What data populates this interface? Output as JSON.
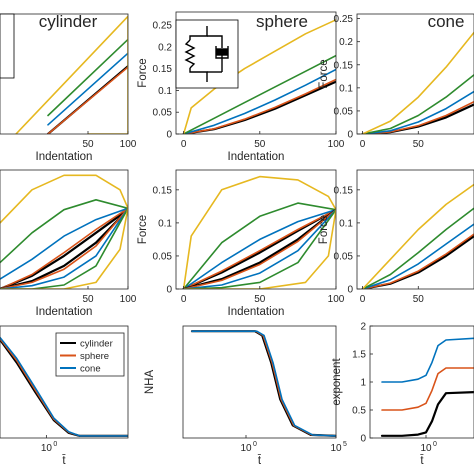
{
  "colors": {
    "black": "#000000",
    "red": "#d95319",
    "blue": "#0072bd",
    "green": "#2e8b2e",
    "yellow": "#e6b820",
    "axis": "#262626",
    "background": "#ffffff"
  },
  "chart_data": [
    {
      "id": "cylinder-load",
      "type": "line",
      "title": "cylinder",
      "xlabel": "Indentation",
      "ylabel": "",
      "xlim": [
        -60,
        100
      ],
      "ylim": [
        0,
        0.26
      ],
      "xticks": [
        50,
        100
      ],
      "yticks": [],
      "legend_glyph": "S",
      "series": [
        {
          "color": "black",
          "x": [
            0,
            100
          ],
          "y": [
            0.0,
            0.147
          ]
        },
        {
          "color": "red",
          "x": [
            0,
            100
          ],
          "y": [
            0.0,
            0.145
          ]
        },
        {
          "color": "blue",
          "x": [
            0,
            100
          ],
          "y": [
            0.02,
            0.175
          ]
        },
        {
          "color": "green",
          "x": [
            0,
            100
          ],
          "y": [
            0.04,
            0.205
          ]
        },
        {
          "color": "yellow",
          "x": [
            -40,
            100
          ],
          "y": [
            0.0,
            0.255
          ]
        },
        {
          "color": "yellow",
          "x": [
            100,
            100,
            50
          ],
          "y": [
            0.255,
            0.0,
            0.0
          ]
        }
      ]
    },
    {
      "id": "sphere-load",
      "type": "line",
      "title": "sphere",
      "xlabel": "Indentation",
      "ylabel": "Force",
      "xlim": [
        -5,
        100
      ],
      "ylim": [
        0,
        0.28
      ],
      "xticks": [
        0,
        50,
        100
      ],
      "yticks": [
        0,
        0.05,
        0.1,
        0.15,
        0.2,
        0.25
      ],
      "series": [
        {
          "color": "black",
          "x": [
            0,
            20,
            40,
            60,
            80,
            100
          ],
          "y": [
            0,
            0.011,
            0.032,
            0.058,
            0.089,
            0.12
          ]
        },
        {
          "color": "red",
          "x": [
            0,
            20,
            40,
            60,
            80,
            100
          ],
          "y": [
            0,
            0.012,
            0.034,
            0.061,
            0.092,
            0.125
          ]
        },
        {
          "color": "blue",
          "x": [
            0,
            20,
            40,
            60,
            80,
            100
          ],
          "y": [
            0,
            0.02,
            0.047,
            0.078,
            0.112,
            0.148
          ]
        },
        {
          "color": "green",
          "x": [
            0,
            20,
            40,
            60,
            80,
            100
          ],
          "y": [
            0,
            0.036,
            0.072,
            0.108,
            0.144,
            0.18
          ]
        },
        {
          "color": "yellow",
          "x": [
            0,
            5,
            20,
            40,
            60,
            80,
            100
          ],
          "y": [
            0,
            0.06,
            0.103,
            0.15,
            0.19,
            0.23,
            0.262
          ]
        }
      ]
    },
    {
      "id": "cone-load",
      "type": "line",
      "title": "cone",
      "xlabel": "",
      "ylabel": "Force",
      "xlim": [
        -5,
        100
      ],
      "ylim": [
        0,
        0.26
      ],
      "xticks": [
        0,
        50
      ],
      "yticks": [
        0,
        0.05,
        0.1,
        0.15,
        0.2,
        0.25
      ],
      "series": [
        {
          "color": "black",
          "x": [
            0,
            25,
            50,
            75,
            100
          ],
          "y": [
            0,
            0.004,
            0.016,
            0.036,
            0.064
          ]
        },
        {
          "color": "red",
          "x": [
            0,
            25,
            50,
            75,
            100
          ],
          "y": [
            0,
            0.0045,
            0.018,
            0.04,
            0.07
          ]
        },
        {
          "color": "blue",
          "x": [
            0,
            25,
            50,
            75,
            100
          ],
          "y": [
            0,
            0.007,
            0.026,
            0.055,
            0.092
          ]
        },
        {
          "color": "green",
          "x": [
            0,
            25,
            50,
            75,
            100
          ],
          "y": [
            0,
            0.012,
            0.04,
            0.08,
            0.128
          ]
        },
        {
          "color": "yellow",
          "x": [
            0,
            25,
            50,
            75,
            100
          ],
          "y": [
            0,
            0.028,
            0.08,
            0.145,
            0.22
          ]
        }
      ]
    },
    {
      "id": "cylinder-hysteresis",
      "type": "line",
      "title": "",
      "xlabel": "Indentation",
      "ylabel": "",
      "xlim": [
        -60,
        100
      ],
      "ylim": [
        0,
        0.18
      ],
      "xticks": [
        50,
        100
      ],
      "yticks": [],
      "series": [
        {
          "color": "black",
          "x": [
            -60,
            -20,
            20,
            60,
            100
          ],
          "y": [
            0.0,
            0.02,
            0.05,
            0.085,
            0.12
          ]
        },
        {
          "color": "red",
          "x": [
            -60,
            -20,
            20,
            60,
            100
          ],
          "y": [
            0.0,
            0.022,
            0.055,
            0.09,
            0.122
          ]
        },
        {
          "color": "blue",
          "x": [
            -60,
            -20,
            20,
            60,
            100
          ],
          "y": [
            0.015,
            0.045,
            0.08,
            0.105,
            0.122
          ]
        },
        {
          "color": "green",
          "x": [
            -60,
            -20,
            20,
            60,
            100
          ],
          "y": [
            0.04,
            0.085,
            0.12,
            0.135,
            0.122
          ]
        },
        {
          "color": "yellow",
          "x": [
            -60,
            -20,
            20,
            60,
            90,
            100
          ],
          "y": [
            0.1,
            0.15,
            0.172,
            0.172,
            0.15,
            0.122
          ]
        },
        {
          "color": "black",
          "x": [
            -60,
            -20,
            20,
            60,
            100
          ],
          "y": [
            0.0,
            0.012,
            0.035,
            0.07,
            0.12
          ]
        },
        {
          "color": "red",
          "x": [
            -60,
            -20,
            20,
            60,
            100
          ],
          "y": [
            0.0,
            0.01,
            0.03,
            0.065,
            0.122
          ]
        },
        {
          "color": "blue",
          "x": [
            -60,
            -20,
            20,
            60,
            100
          ],
          "y": [
            0.0,
            0.005,
            0.018,
            0.05,
            0.122
          ]
        },
        {
          "color": "green",
          "x": [
            -60,
            -20,
            20,
            60,
            100
          ],
          "y": [
            0.0,
            0.0,
            0.006,
            0.035,
            0.122
          ]
        },
        {
          "color": "yellow",
          "x": [
            -60,
            20,
            60,
            90,
            100
          ],
          "y": [
            0.0,
            0.0,
            0.01,
            0.06,
            0.122
          ]
        }
      ]
    },
    {
      "id": "sphere-hysteresis",
      "type": "line",
      "title": "",
      "xlabel": "Indentation",
      "ylabel": "Force",
      "xlim": [
        -5,
        100
      ],
      "ylim": [
        0,
        0.18
      ],
      "xticks": [
        0,
        50,
        100
      ],
      "yticks": [
        0,
        0.05,
        0.1,
        0.15
      ],
      "series": [
        {
          "color": "black",
          "x": [
            0,
            25,
            50,
            75,
            100
          ],
          "y": [
            0,
            0.025,
            0.055,
            0.088,
            0.12
          ]
        },
        {
          "color": "red",
          "x": [
            0,
            25,
            50,
            75,
            100
          ],
          "y": [
            0,
            0.027,
            0.058,
            0.09,
            0.12
          ]
        },
        {
          "color": "blue",
          "x": [
            0,
            25,
            50,
            75,
            100
          ],
          "y": [
            0,
            0.04,
            0.075,
            0.102,
            0.12
          ]
        },
        {
          "color": "green",
          "x": [
            0,
            25,
            50,
            75,
            100
          ],
          "y": [
            0,
            0.07,
            0.11,
            0.13,
            0.12
          ]
        },
        {
          "color": "yellow",
          "x": [
            0,
            5,
            25,
            50,
            75,
            95,
            100
          ],
          "y": [
            0,
            0.08,
            0.15,
            0.17,
            0.165,
            0.14,
            0.12
          ]
        },
        {
          "color": "black",
          "x": [
            0,
            25,
            50,
            75,
            100
          ],
          "y": [
            0,
            0.015,
            0.04,
            0.075,
            0.12
          ]
        },
        {
          "color": "red",
          "x": [
            0,
            25,
            50,
            75,
            100
          ],
          "y": [
            0,
            0.013,
            0.037,
            0.072,
            0.12
          ]
        },
        {
          "color": "blue",
          "x": [
            0,
            25,
            50,
            75,
            100
          ],
          "y": [
            0,
            0.006,
            0.024,
            0.058,
            0.12
          ]
        },
        {
          "color": "green",
          "x": [
            0,
            25,
            50,
            75,
            100
          ],
          "y": [
            0,
            0.002,
            0.01,
            0.04,
            0.12
          ]
        },
        {
          "color": "yellow",
          "x": [
            0,
            50,
            80,
            95,
            100
          ],
          "y": [
            0,
            0.0,
            0.01,
            0.05,
            0.12
          ]
        }
      ]
    },
    {
      "id": "cone-hysteresis",
      "type": "line",
      "title": "",
      "xlabel": "",
      "ylabel": "Force",
      "xlim": [
        -5,
        100
      ],
      "ylim": [
        0,
        0.18
      ],
      "xticks": [
        0,
        50
      ],
      "yticks": [
        0,
        0.05,
        0.1,
        0.15
      ],
      "series": [
        {
          "color": "black",
          "x": [
            0,
            25,
            50,
            75,
            100
          ],
          "y": [
            0,
            0.008,
            0.025,
            0.05,
            0.08
          ]
        },
        {
          "color": "red",
          "x": [
            0,
            25,
            50,
            75,
            100
          ],
          "y": [
            0,
            0.009,
            0.027,
            0.053,
            0.083
          ]
        },
        {
          "color": "blue",
          "x": [
            0,
            25,
            50,
            75,
            100
          ],
          "y": [
            0,
            0.014,
            0.038,
            0.068,
            0.098
          ]
        },
        {
          "color": "green",
          "x": [
            0,
            25,
            50,
            75,
            100
          ],
          "y": [
            0,
            0.022,
            0.055,
            0.09,
            0.122
          ]
        },
        {
          "color": "yellow",
          "x": [
            0,
            25,
            50,
            75,
            100
          ],
          "y": [
            0,
            0.045,
            0.09,
            0.128,
            0.158
          ]
        }
      ]
    },
    {
      "id": "nha-legend",
      "type": "line",
      "title": "",
      "xlabel": "t̄",
      "ylabel": "",
      "xscale": "log",
      "xlim": [
        -1.25,
        2.2
      ],
      "ylim": [
        -0.02,
        1.05
      ],
      "xticks": [
        0
      ],
      "xticklabels": [
        "10"
      ],
      "xtick_exponent": "0",
      "yticks": [],
      "legend": {
        "position": "top-right",
        "entries": [
          "cylinder",
          "sphere",
          "cone"
        ]
      },
      "series": [
        {
          "name": "cylinder",
          "color": "black",
          "x": [
            -1.25,
            -0.8,
            -0.3,
            0.2,
            0.6,
            0.9,
            2.2
          ],
          "y": [
            0.92,
            0.7,
            0.42,
            0.15,
            0.03,
            0.0,
            0.0
          ]
        },
        {
          "name": "sphere",
          "color": "red",
          "x": [
            -1.25,
            -0.8,
            -0.3,
            0.2,
            0.6,
            0.9,
            2.2
          ],
          "y": [
            0.93,
            0.72,
            0.44,
            0.16,
            0.035,
            0.0,
            0.0
          ]
        },
        {
          "name": "cone",
          "color": "blue",
          "x": [
            -1.25,
            -0.8,
            -0.3,
            0.2,
            0.6,
            0.9,
            2.2
          ],
          "y": [
            0.94,
            0.74,
            0.46,
            0.17,
            0.04,
            0.0,
            0.0
          ]
        }
      ]
    },
    {
      "id": "nha",
      "type": "line",
      "title": "",
      "xlabel": "t̄",
      "ylabel": "NHA",
      "xscale": "log",
      "xlim": [
        -3.5,
        5
      ],
      "ylim": [
        -0.02,
        1.05
      ],
      "xticks": [
        0,
        5
      ],
      "xticklabels": [
        "10",
        "10"
      ],
      "xtick_exponents": [
        "0",
        "5"
      ],
      "yticks": [],
      "series": [
        {
          "color": "black",
          "x": [
            -3.0,
            0.5,
            0.9,
            1.4,
            1.9,
            2.6,
            3.6,
            5.0
          ],
          "y": [
            1.0,
            1.0,
            0.96,
            0.7,
            0.35,
            0.1,
            0.01,
            0.0
          ]
        },
        {
          "color": "red",
          "x": [
            -3.0,
            0.55,
            0.95,
            1.45,
            1.95,
            2.65,
            3.65,
            5.0
          ],
          "y": [
            1.0,
            1.0,
            0.96,
            0.7,
            0.35,
            0.1,
            0.01,
            0.0
          ]
        },
        {
          "color": "blue",
          "x": [
            -3.0,
            0.6,
            1.0,
            1.5,
            2.0,
            2.7,
            3.7,
            5.0
          ],
          "y": [
            1.0,
            1.0,
            0.96,
            0.7,
            0.35,
            0.1,
            0.01,
            0.0
          ]
        }
      ]
    },
    {
      "id": "exponent",
      "type": "line",
      "title": "",
      "xlabel": "t̄",
      "ylabel": "exponent",
      "xscale": "log",
      "xlim": [
        -1.4,
        1.2
      ],
      "ylim": [
        0,
        2
      ],
      "xticks": [
        0
      ],
      "xticklabels": [
        "10"
      ],
      "xtick_exponent": "0",
      "yticks": [
        0,
        0.5,
        1,
        1.5,
        2
      ],
      "series": [
        {
          "color": "black",
          "x": [
            -1.1,
            -0.6,
            -0.2,
            0.0,
            0.15,
            0.3,
            0.5,
            1.2
          ],
          "y": [
            0.04,
            0.04,
            0.06,
            0.1,
            0.3,
            0.6,
            0.8,
            0.82
          ]
        },
        {
          "color": "red",
          "x": [
            -1.1,
            -0.6,
            -0.2,
            0.0,
            0.15,
            0.3,
            0.5,
            1.2
          ],
          "y": [
            0.5,
            0.5,
            0.55,
            0.62,
            0.85,
            1.15,
            1.25,
            1.25
          ]
        },
        {
          "color": "blue",
          "x": [
            -1.1,
            -0.6,
            -0.2,
            0.0,
            0.15,
            0.3,
            0.5,
            1.2
          ],
          "y": [
            1.0,
            1.0,
            1.05,
            1.12,
            1.35,
            1.65,
            1.75,
            1.78
          ]
        }
      ]
    }
  ]
}
